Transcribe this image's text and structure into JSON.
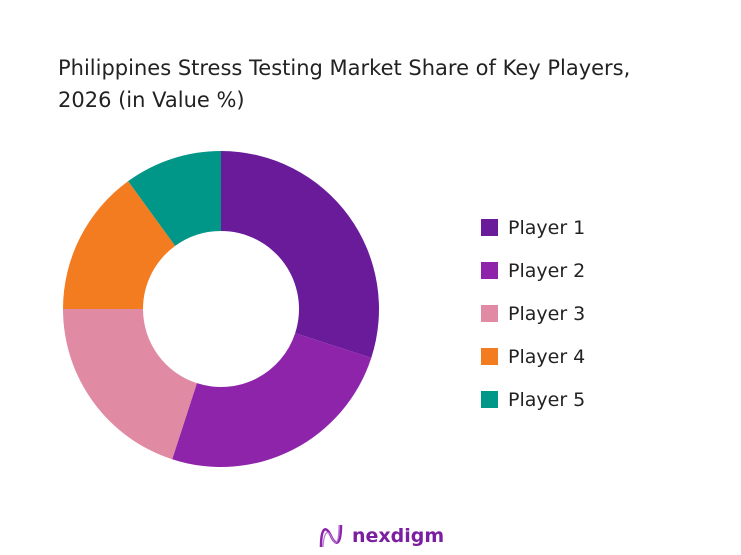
{
  "chart_data": {
    "type": "pie",
    "variant": "donut",
    "title": "Philippines Stress Testing Market Share of Key Players, 2026 (in Value %)",
    "categories": [
      "Player 1",
      "Player 2",
      "Player 3",
      "Player 4",
      "Player 5"
    ],
    "values": [
      30,
      25,
      20,
      15,
      10
    ],
    "colors": [
      "#6a1b9a",
      "#8e24aa",
      "#e08aa3",
      "#f47c20",
      "#009688"
    ],
    "legend_position": "right"
  },
  "logo": {
    "text": "nexdigm",
    "color": "#7b1fa2"
  }
}
